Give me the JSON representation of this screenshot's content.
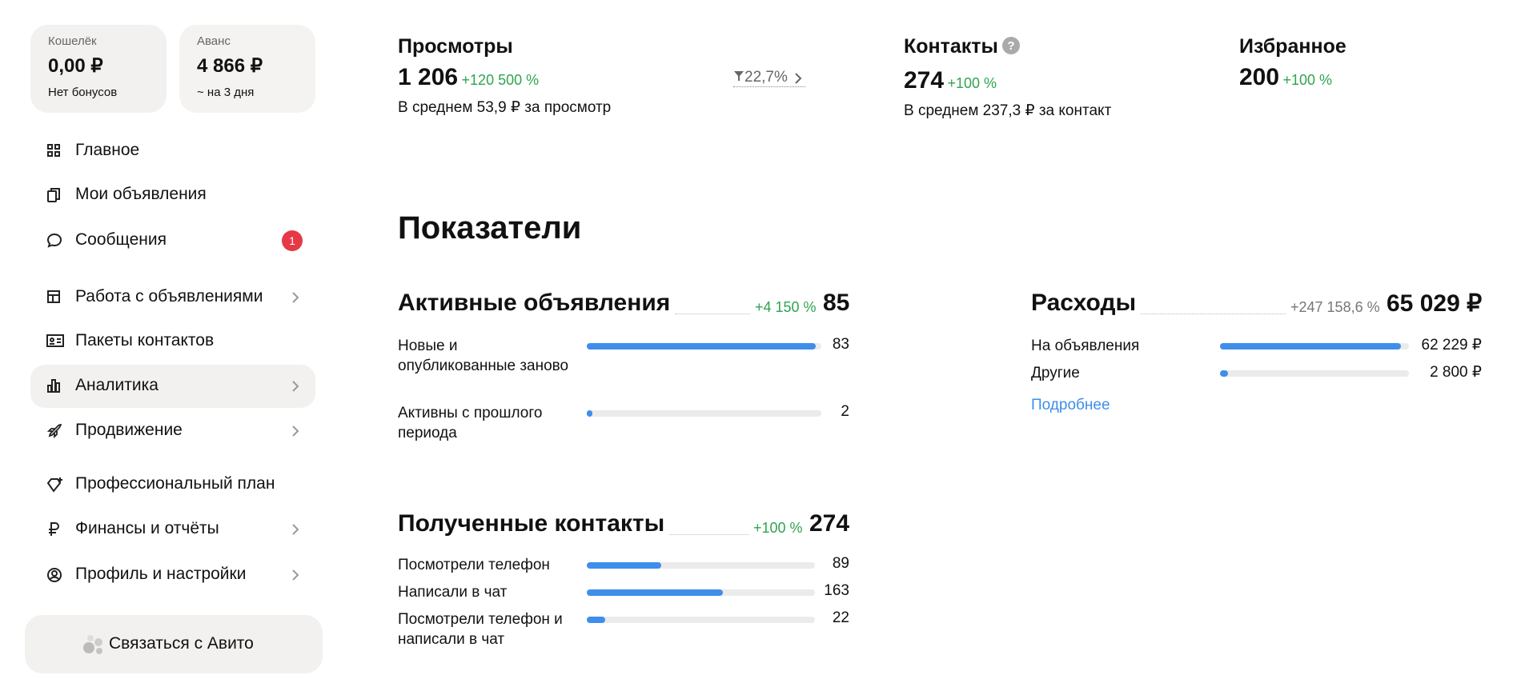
{
  "sidebar": {
    "wallet": {
      "label": "Кошелёк",
      "amount": "0,00 ₽",
      "note": "Нет бонусов"
    },
    "advance": {
      "label": "Аванс",
      "amount": "4 866 ₽",
      "note": "~ на 3 дня"
    },
    "menu": [
      {
        "label": "Главное"
      },
      {
        "label": "Мои объявления"
      },
      {
        "label": "Сообщения",
        "badge": "1"
      },
      {
        "label": "Работа с объявлениями"
      },
      {
        "label": "Пакеты контактов"
      },
      {
        "label": "Аналитика"
      },
      {
        "label": "Продвижение"
      },
      {
        "label": "Профессиональный план"
      },
      {
        "label": "Финансы и отчёты"
      },
      {
        "label": "Профиль и настройки"
      }
    ],
    "contact_button": "Связаться с Авито"
  },
  "summary": [
    {
      "title": "Просмотры",
      "value": "1 206",
      "change": "+120 500 %",
      "note": "В среднем 53,9 ₽ за просмотр",
      "conversion": "22,7%"
    },
    {
      "title": "Контакты",
      "value": "274",
      "change": "+100 %",
      "note": "В среднем 237,3 ₽ за контакт"
    },
    {
      "title": "Избранное",
      "value": "200",
      "change": "+100 %"
    }
  ],
  "metrics": {
    "title": "Показатели",
    "active": {
      "title": "Активные объявления",
      "change": "+4 150 %",
      "total": 85,
      "rows": [
        {
          "label": "Новые и опубликованные заново",
          "value": 83
        },
        {
          "label": "Активны с прошлого периода",
          "value": 2
        }
      ]
    },
    "contacts": {
      "title": "Полученные контакты",
      "change": "+100 %",
      "total": 274,
      "rows": [
        {
          "label": "Посмотрели телефон",
          "value": 89
        },
        {
          "label": "Написали в чат",
          "value": 163
        },
        {
          "label": "Посмотрели телефон и написали в чат",
          "value": 22
        }
      ]
    },
    "expenses": {
      "title": "Расходы",
      "change": "+247 158,6 %",
      "total": 65029,
      "total_label": "65 029 ₽",
      "rows": [
        {
          "label": "На объявления",
          "value": 62229,
          "value_label": "62 229 ₽"
        },
        {
          "label": "Другие",
          "value": 2800,
          "value_label": "2 800 ₽"
        }
      ],
      "link": "Подробнее"
    }
  }
}
